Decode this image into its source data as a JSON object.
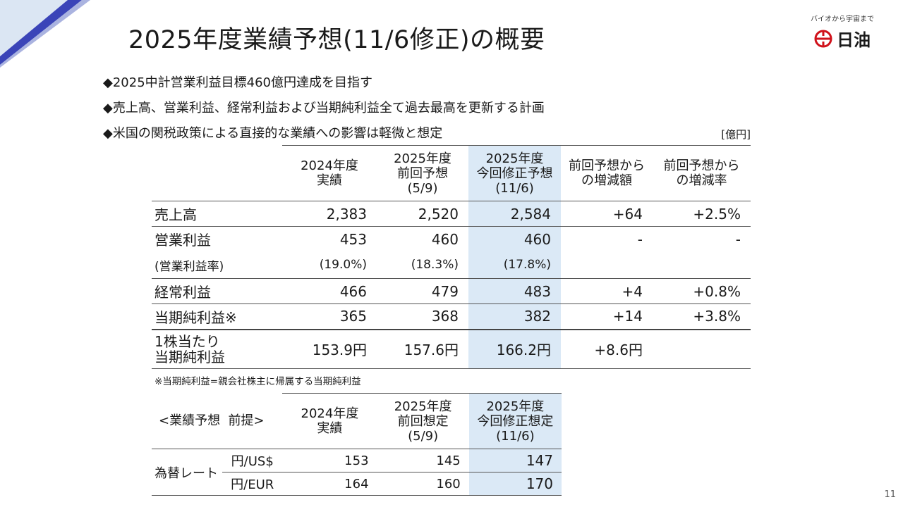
{
  "title": "2025年度業績予想(11/6修正)の概要",
  "logo": {
    "tagline": "バイオから宇宙まで",
    "name": "日油"
  },
  "bullets": [
    "◆2025中計営業利益目標460億円達成を目指す",
    "◆売上高、営業利益、経常利益および当期純利益全て過去最高を更新する計画",
    "◆米国の関税政策による直接的な業績への影響は軽微と想定"
  ],
  "unit": "[億円]",
  "main_table": {
    "headers": [
      "",
      "2024年度\n実績",
      "2025年度\n前回予想\n(5/9)",
      "2025年度\n今回修正予想\n(11/6)",
      "前回予想から\nの増減額",
      "前回予想から\nの増減率"
    ],
    "rows": [
      [
        "売上高",
        "2,383",
        "2,520",
        "2,584",
        "+64",
        "+2.5%"
      ],
      [
        "営業利益",
        "453",
        "460",
        "460",
        "-",
        "-"
      ],
      [
        "(営業利益率)",
        "(19.0%)",
        "(18.3%)",
        "(17.8%)",
        "",
        ""
      ],
      [
        "経常利益",
        "466",
        "479",
        "483",
        "+4",
        "+0.8%"
      ],
      [
        "当期純利益※",
        "365",
        "368",
        "382",
        "+14",
        "+3.8%"
      ],
      [
        "1株当たり\n当期純利益",
        "153.9円",
        "157.6円",
        "166.2円",
        "+8.6円",
        ""
      ]
    ]
  },
  "note": "※当期純利益=親会社株主に帰属する当期純利益",
  "fx_table": {
    "header_label": "<業績予想  前提>",
    "headers": [
      "2024年度\n実績",
      "2025年度\n前回想定\n(5/9)",
      "2025年度\n今回修正想定\n(11/6)"
    ],
    "group_label": "為替レート",
    "rows": [
      [
        "円/US$",
        "153",
        "145",
        "147"
      ],
      [
        "円/EUR",
        "164",
        "160",
        "170"
      ]
    ]
  },
  "page_number": "11",
  "colors": {
    "highlight": "#dbe9f6",
    "accent_blue": "#3a44b8"
  }
}
